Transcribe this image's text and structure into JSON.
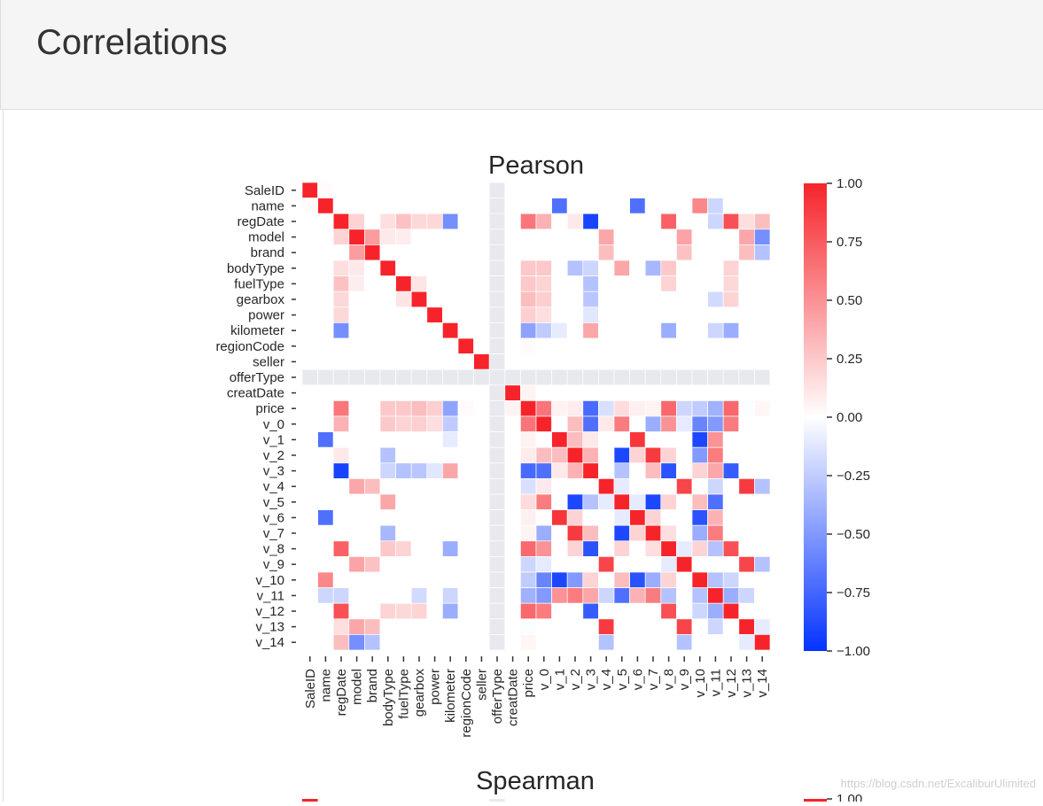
{
  "page": {
    "title": "Correlations"
  },
  "chart_data": [
    {
      "type": "heatmap",
      "title": "Pearson",
      "variables": [
        "SaleID",
        "name",
        "regDate",
        "model",
        "brand",
        "bodyType",
        "fuelType",
        "gearbox",
        "power",
        "kilometer",
        "regionCode",
        "seller",
        "offerType",
        "creatDate",
        "price",
        "v_0",
        "v_1",
        "v_2",
        "v_3",
        "v_4",
        "v_5",
        "v_6",
        "v_7",
        "v_8",
        "v_9",
        "v_10",
        "v_11",
        "v_12",
        "v_13",
        "v_14"
      ],
      "undefined_variable": "offerType",
      "vmin": -1.0,
      "vmax": 1.0,
      "colorbar_ticks": [
        "1.00",
        "0.75",
        "0.50",
        "0.25",
        "0.00",
        "−0.25",
        "−0.50",
        "−0.75",
        "−1.00"
      ],
      "colorbar_tick_values": [
        1.0,
        0.75,
        0.5,
        0.25,
        0.0,
        -0.25,
        -0.5,
        -0.75,
        -1.0
      ],
      "colors": {
        "positive": "#f6242a",
        "zero": "#ffffff",
        "negative": "#0433ff",
        "nan": "#e8e9ef"
      },
      "pairs": [
        [
          "name",
          "v_1",
          -0.7
        ],
        [
          "name",
          "v_6",
          -0.7
        ],
        [
          "name",
          "v_10",
          0.55
        ],
        [
          "name",
          "v_11",
          -0.2
        ],
        [
          "regDate",
          "model",
          0.2
        ],
        [
          "regDate",
          "bodyType",
          0.15
        ],
        [
          "regDate",
          "fuelType",
          0.28
        ],
        [
          "regDate",
          "gearbox",
          0.18
        ],
        [
          "regDate",
          "power",
          0.18
        ],
        [
          "regDate",
          "kilometer",
          -0.55
        ],
        [
          "regDate",
          "price",
          0.62
        ],
        [
          "regDate",
          "v_0",
          0.35
        ],
        [
          "regDate",
          "v_3",
          -0.92
        ],
        [
          "regDate",
          "v_8",
          0.72
        ],
        [
          "regDate",
          "v_12",
          0.8
        ],
        [
          "regDate",
          "v_11",
          -0.2
        ],
        [
          "regDate",
          "v_2",
          0.1
        ],
        [
          "regDate",
          "v_13",
          0.15
        ],
        [
          "regDate",
          "v_14",
          0.3
        ],
        [
          "model",
          "brand",
          0.45
        ],
        [
          "model",
          "v_4",
          0.4
        ],
        [
          "model",
          "v_9",
          0.42
        ],
        [
          "model",
          "v_13",
          0.4
        ],
        [
          "model",
          "v_14",
          -0.55
        ],
        [
          "model",
          "bodyType",
          0.1
        ],
        [
          "model",
          "fuelType",
          0.08
        ],
        [
          "brand",
          "v_4",
          0.3
        ],
        [
          "brand",
          "v_9",
          0.28
        ],
        [
          "brand",
          "v_13",
          0.3
        ],
        [
          "brand",
          "v_14",
          -0.3
        ],
        [
          "bodyType",
          "v_2",
          -0.3
        ],
        [
          "bodyType",
          "v_5",
          0.4
        ],
        [
          "bodyType",
          "v_7",
          -0.35
        ],
        [
          "bodyType",
          "price",
          0.25
        ],
        [
          "bodyType",
          "v_0",
          0.25
        ],
        [
          "bodyType",
          "v_3",
          -0.2
        ],
        [
          "bodyType",
          "v_8",
          0.25
        ],
        [
          "bodyType",
          "v_12",
          0.2
        ],
        [
          "fuelType",
          "price",
          0.25
        ],
        [
          "fuelType",
          "v_0",
          0.2
        ],
        [
          "fuelType",
          "v_3",
          -0.3
        ],
        [
          "fuelType",
          "v_8",
          0.2
        ],
        [
          "fuelType",
          "v_12",
          0.18
        ],
        [
          "fuelType",
          "gearbox",
          0.12
        ],
        [
          "gearbox",
          "price",
          0.3
        ],
        [
          "gearbox",
          "v_3",
          -0.28
        ],
        [
          "gearbox",
          "v_0",
          0.22
        ],
        [
          "gearbox",
          "v_12",
          0.2
        ],
        [
          "gearbox",
          "v_11",
          -0.18
        ],
        [
          "power",
          "price",
          0.22
        ],
        [
          "power",
          "v_0",
          0.15
        ],
        [
          "power",
          "v_3",
          -0.12
        ],
        [
          "kilometer",
          "price",
          -0.45
        ],
        [
          "kilometer",
          "v_0",
          -0.25
        ],
        [
          "kilometer",
          "v_3",
          0.4
        ],
        [
          "kilometer",
          "v_8",
          -0.4
        ],
        [
          "kilometer",
          "v_12",
          -0.4
        ],
        [
          "kilometer",
          "v_11",
          -0.2
        ],
        [
          "kilometer",
          "v_1",
          -0.1
        ],
        [
          "price",
          "v_0",
          0.63
        ],
        [
          "price",
          "v_3",
          -0.73
        ],
        [
          "price",
          "v_8",
          0.69
        ],
        [
          "price",
          "v_12",
          0.69
        ],
        [
          "price",
          "v_11",
          -0.38
        ],
        [
          "price",
          "v_1",
          0.06
        ],
        [
          "price",
          "v_2",
          0.09
        ],
        [
          "price",
          "v_4",
          -0.15
        ],
        [
          "price",
          "v_5",
          0.16
        ],
        [
          "price",
          "v_6",
          0.07
        ],
        [
          "price",
          "v_7",
          0.05
        ],
        [
          "price",
          "v_9",
          -0.2
        ],
        [
          "price",
          "v_10",
          -0.25
        ],
        [
          "price",
          "v_13",
          -0.01
        ],
        [
          "price",
          "v_14",
          0.04
        ],
        [
          "v_0",
          "v_2",
          0.3
        ],
        [
          "v_0",
          "v_3",
          -0.7
        ],
        [
          "v_0",
          "v_5",
          0.6
        ],
        [
          "v_0",
          "v_7",
          -0.4
        ],
        [
          "v_0",
          "v_8",
          0.5
        ],
        [
          "v_0",
          "v_10",
          -0.6
        ],
        [
          "v_0",
          "v_11",
          -0.5
        ],
        [
          "v_0",
          "v_12",
          0.6
        ],
        [
          "v_0",
          "v_4",
          0.1
        ],
        [
          "v_0",
          "v_9",
          -0.1
        ],
        [
          "v_1",
          "v_6",
          0.92
        ],
        [
          "v_1",
          "v_10",
          -0.9
        ],
        [
          "v_1",
          "v_11",
          0.5
        ],
        [
          "v_1",
          "v_2",
          0.3
        ],
        [
          "v_1",
          "v_3",
          0.1
        ],
        [
          "v_2",
          "v_5",
          -0.9
        ],
        [
          "v_2",
          "v_7",
          0.9
        ],
        [
          "v_2",
          "v_8",
          0.2
        ],
        [
          "v_2",
          "v_11",
          0.6
        ],
        [
          "v_2",
          "v_10",
          -0.5
        ],
        [
          "v_2",
          "v_3",
          0.35
        ],
        [
          "v_2",
          "v_6",
          0.2
        ],
        [
          "v_3",
          "v_5",
          -0.3
        ],
        [
          "v_3",
          "v_8",
          -0.85
        ],
        [
          "v_3",
          "v_12",
          -0.8
        ],
        [
          "v_3",
          "v_11",
          0.4
        ],
        [
          "v_3",
          "v_10",
          0.2
        ],
        [
          "v_3",
          "v_7",
          0.3
        ],
        [
          "v_4",
          "v_9",
          0.85
        ],
        [
          "v_4",
          "v_13",
          0.9
        ],
        [
          "v_4",
          "v_14",
          -0.3
        ],
        [
          "v_4",
          "v_11",
          -0.2
        ],
        [
          "v_4",
          "v_5",
          -0.1
        ],
        [
          "v_5",
          "v_7",
          -0.9
        ],
        [
          "v_5",
          "v_10",
          0.3
        ],
        [
          "v_5",
          "v_11",
          -0.7
        ],
        [
          "v_5",
          "v_8",
          0.2
        ],
        [
          "v_5",
          "v_6",
          -0.1
        ],
        [
          "v_6",
          "v_10",
          -0.85
        ],
        [
          "v_6",
          "v_11",
          0.35
        ],
        [
          "v_6",
          "v_7",
          0.2
        ],
        [
          "v_7",
          "v_10",
          -0.4
        ],
        [
          "v_7",
          "v_11",
          0.6
        ],
        [
          "v_7",
          "v_8",
          0.15
        ],
        [
          "v_8",
          "v_12",
          0.8
        ],
        [
          "v_8",
          "v_11",
          -0.3
        ],
        [
          "v_8",
          "v_10",
          0.2
        ],
        [
          "v_8",
          "v_9",
          -0.1
        ],
        [
          "v_9",
          "v_13",
          0.85
        ],
        [
          "v_9",
          "v_14",
          -0.3
        ],
        [
          "v_10",
          "v_11",
          -0.3
        ],
        [
          "v_10",
          "v_12",
          -0.2
        ],
        [
          "v_11",
          "v_12",
          -0.4
        ],
        [
          "v_11",
          "v_13",
          -0.2
        ],
        [
          "v_13",
          "v_14",
          -0.1
        ],
        [
          "SaleID",
          "name",
          0.02
        ],
        [
          "creatDate",
          "price",
          0.05
        ],
        [
          "regionCode",
          "price",
          0.02
        ]
      ]
    },
    {
      "type": "heatmap",
      "title": "Spearman",
      "colorbar_ticks": [
        "1.00"
      ]
    }
  ],
  "watermark": "https://blog.csdn.net/ExcaliburUlimited"
}
